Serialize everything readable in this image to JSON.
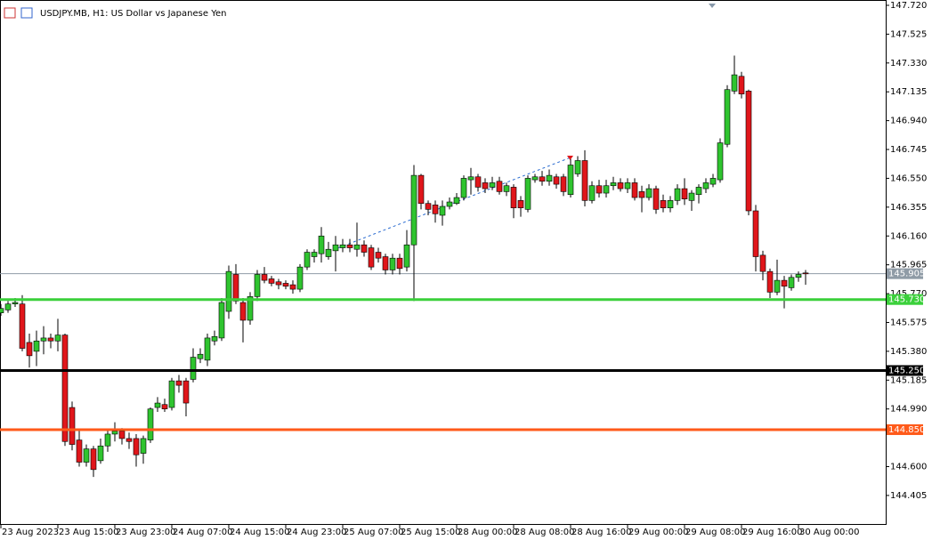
{
  "chart_data": {
    "type": "candlestick",
    "title": "USDJPY.MB, H1:  US Dollar vs Japanese Yen",
    "categories": [
      "23 Aug 2023",
      null,
      null,
      null,
      null,
      null,
      null,
      null,
      "23 Aug 15:00",
      null,
      null,
      null,
      null,
      null,
      null,
      null,
      "23 Aug 23:00",
      null,
      null,
      null,
      null,
      null,
      null,
      null,
      "24 Aug 07:00",
      null,
      null,
      null,
      null,
      null,
      null,
      null,
      "24 Aug 15:00",
      null,
      null,
      null,
      null,
      null,
      null,
      null,
      "24 Aug 23:00",
      null,
      null,
      null,
      null,
      null,
      null,
      null,
      "25 Aug 07:00",
      null,
      null,
      null,
      null,
      null,
      null,
      null,
      "25 Aug 15:00",
      null,
      null,
      null,
      null,
      null,
      null,
      null,
      "28 Aug 00:00",
      null,
      null,
      null,
      null,
      null,
      null,
      null,
      "28 Aug 08:00",
      null,
      null,
      null,
      null,
      null,
      null,
      null,
      "28 Aug 16:00",
      null,
      null,
      null,
      null,
      null,
      null,
      null,
      "29 Aug 00:00",
      null,
      null,
      null,
      null,
      null,
      null,
      null,
      "29 Aug 08:00",
      null,
      null,
      null,
      null,
      null,
      null,
      null,
      "29 Aug 16:00",
      null,
      null,
      null,
      null,
      null,
      null,
      null,
      "30 Aug 00:00",
      null
    ],
    "open": [
      145.64,
      145.66,
      145.7,
      145.7,
      145.44,
      145.38,
      145.45,
      145.47,
      145.45,
      145.49,
      145.0,
      144.78,
      144.63,
      144.72,
      144.64,
      144.74,
      144.82,
      144.84,
      144.79,
      144.79,
      144.69,
      144.78,
      145.0,
      145.02,
      145.0,
      145.18,
      145.18,
      145.19,
      145.33,
      145.32,
      145.45,
      145.47,
      145.65,
      145.9,
      145.71,
      145.59,
      145.75,
      145.9,
      145.87,
      145.85,
      145.84,
      145.83,
      145.8,
      145.95,
      146.02,
      146.04,
      146.02,
      146.06,
      146.08,
      146.1,
      146.07,
      146.1,
      146.08,
      146.05,
      146.02,
      145.93,
      146.01,
      145.95,
      146.1,
      146.57,
      146.38,
      146.37,
      146.3,
      146.36,
      146.38,
      146.42,
      146.54,
      146.56,
      146.52,
      146.49,
      146.53,
      146.46,
      146.49,
      146.4,
      146.34,
      146.54,
      146.56,
      146.53,
      146.56,
      146.56,
      146.44,
      146.58,
      146.67,
      146.4,
      146.5,
      146.45,
      146.5,
      146.52,
      146.48,
      146.52,
      146.46,
      146.42,
      146.48,
      146.4,
      146.35,
      146.4,
      146.48,
      146.4,
      146.44,
      146.48,
      146.51,
      146.54,
      146.78,
      147.14,
      147.24,
      147.14,
      146.33,
      146.03,
      145.92,
      145.78,
      145.86,
      145.81,
      145.88,
      145.91
    ],
    "high": [
      145.7,
      145.72,
      145.74,
      145.76,
      145.5,
      145.52,
      145.55,
      145.5,
      145.6,
      145.5,
      145.04,
      144.85,
      144.75,
      144.74,
      144.79,
      144.85,
      144.9,
      144.86,
      144.83,
      144.82,
      144.81,
      145.0,
      145.07,
      145.06,
      145.2,
      145.22,
      145.2,
      145.4,
      145.4,
      145.5,
      145.52,
      145.74,
      145.96,
      145.97,
      145.74,
      145.78,
      145.93,
      145.95,
      145.89,
      145.87,
      145.86,
      145.86,
      145.97,
      146.07,
      146.07,
      146.22,
      146.12,
      146.16,
      146.14,
      146.14,
      146.25,
      146.13,
      146.1,
      146.08,
      146.04,
      146.04,
      146.04,
      146.2,
      146.64,
      146.58,
      146.4,
      146.4,
      146.4,
      146.42,
      146.45,
      146.57,
      146.62,
      146.58,
      146.55,
      146.56,
      146.56,
      146.52,
      146.51,
      146.43,
      146.57,
      146.58,
      146.6,
      146.61,
      146.58,
      146.58,
      146.68,
      146.7,
      146.74,
      146.53,
      146.54,
      146.54,
      146.56,
      146.55,
      146.55,
      146.55,
      146.5,
      146.51,
      146.5,
      146.44,
      146.43,
      146.51,
      146.55,
      146.47,
      146.51,
      146.55,
      146.58,
      146.82,
      147.18,
      147.38,
      147.27,
      147.15,
      146.37,
      146.06,
      145.94,
      146.0,
      145.89,
      145.9,
      145.92,
      145.93
    ],
    "low": [
      145.62,
      145.64,
      145.68,
      145.38,
      145.27,
      145.28,
      145.36,
      145.4,
      145.38,
      144.74,
      144.71,
      144.6,
      144.6,
      144.53,
      144.62,
      144.7,
      144.77,
      144.75,
      144.72,
      144.6,
      144.62,
      144.76,
      144.97,
      144.97,
      144.98,
      145.1,
      144.94,
      145.17,
      145.3,
      145.28,
      145.42,
      145.45,
      145.6,
      145.7,
      145.44,
      145.56,
      145.72,
      145.84,
      145.82,
      145.8,
      145.8,
      145.77,
      145.78,
      145.93,
      145.98,
      145.98,
      146.0,
      145.92,
      146.05,
      146.05,
      146.02,
      146.02,
      145.93,
      145.98,
      145.9,
      145.9,
      145.9,
      145.92,
      145.72,
      146.34,
      146.3,
      146.25,
      146.23,
      146.34,
      146.37,
      146.4,
      146.44,
      146.46,
      146.45,
      146.47,
      146.44,
      146.43,
      146.28,
      146.29,
      146.32,
      146.52,
      146.5,
      146.5,
      146.48,
      146.43,
      146.42,
      146.56,
      146.36,
      146.38,
      146.42,
      146.42,
      146.47,
      146.46,
      146.45,
      146.4,
      146.32,
      146.4,
      146.31,
      146.32,
      146.32,
      146.37,
      146.37,
      146.33,
      146.38,
      146.45,
      146.49,
      146.52,
      146.76,
      147.12,
      147.09,
      146.3,
      145.92,
      145.86,
      145.74,
      145.76,
      145.67,
      145.79,
      145.85,
      145.83
    ],
    "close": [
      145.67,
      145.7,
      145.71,
      145.4,
      145.35,
      145.45,
      145.47,
      145.45,
      145.49,
      144.77,
      144.75,
      144.63,
      144.72,
      144.58,
      144.74,
      144.82,
      144.84,
      144.79,
      144.77,
      144.68,
      144.79,
      144.99,
      145.03,
      144.99,
      145.18,
      145.15,
      145.03,
      145.34,
      145.36,
      145.47,
      145.48,
      145.71,
      145.92,
      145.72,
      145.59,
      145.75,
      145.9,
      145.86,
      145.84,
      145.83,
      145.82,
      145.8,
      145.95,
      146.05,
      146.05,
      146.16,
      146.07,
      146.1,
      146.1,
      146.08,
      146.1,
      146.05,
      145.95,
      146.01,
      145.93,
      146.01,
      145.94,
      146.1,
      146.57,
      146.38,
      146.34,
      146.31,
      146.36,
      146.39,
      146.42,
      146.55,
      146.56,
      146.49,
      146.48,
      146.52,
      146.46,
      146.5,
      146.35,
      146.35,
      146.55,
      146.56,
      146.53,
      146.57,
      146.51,
      146.46,
      146.64,
      146.67,
      146.4,
      146.5,
      146.45,
      146.5,
      146.52,
      146.48,
      146.52,
      146.42,
      146.42,
      146.48,
      146.34,
      146.35,
      146.4,
      146.48,
      146.41,
      146.45,
      146.49,
      146.52,
      146.55,
      146.79,
      147.15,
      147.25,
      147.12,
      146.33,
      146.02,
      145.92,
      145.78,
      145.86,
      145.82,
      145.88,
      145.9,
      145.905
    ],
    "up_color": "#2fc42f",
    "down_color": "#e0161b",
    "ylim": [
      144.206,
      147.756
    ],
    "yticks": [
      {
        "value": 147.72,
        "label": "147.720"
      },
      147.525,
      {
        "value": 147.33,
        "label": "147.330"
      },
      147.135,
      {
        "value": 146.94,
        "label": "146.940"
      },
      146.745,
      {
        "value": 146.55,
        "label": "146.550"
      },
      146.355,
      {
        "value": 146.16,
        "label": "146.160"
      },
      145.965,
      {
        "value": 145.77,
        "label": "145.770"
      },
      145.575,
      {
        "value": 145.38,
        "label": "145.380"
      },
      145.185,
      {
        "value": 144.99,
        "label": "144.990"
      },
      {
        "value": 144.6,
        "label": "144.600"
      },
      144.405
    ],
    "price_line": {
      "value": 145.905,
      "label": "145.905",
      "color": "#8f9ba6"
    },
    "levels": [
      {
        "value": 145.73,
        "label": "145.730",
        "color": "#3bd03b"
      },
      {
        "value": 145.25,
        "label": "145.250",
        "color": "#000000"
      },
      {
        "value": 144.85,
        "label": "144.850",
        "color": "#ff5a1a"
      }
    ]
  }
}
